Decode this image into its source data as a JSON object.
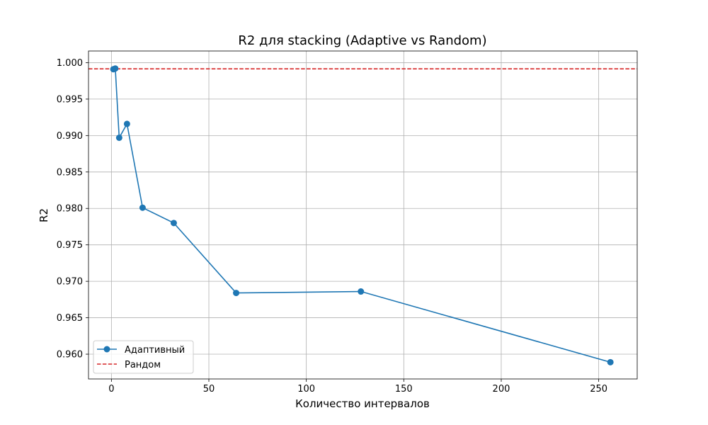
{
  "chart_data": {
    "type": "line",
    "title": "R2 для stacking (Adaptive vs Random)",
    "xlabel": "Количество интервалов",
    "ylabel": "R2",
    "xlim": [
      -11.75,
      269.75
    ],
    "ylim": [
      0.9566,
      1.0016
    ],
    "xticks": [
      0,
      50,
      100,
      150,
      200,
      250
    ],
    "yticks": [
      0.96,
      0.965,
      0.97,
      0.975,
      0.98,
      0.985,
      0.99,
      0.995,
      1.0
    ],
    "yticks_labels": [
      "0.960",
      "0.965",
      "0.970",
      "0.975",
      "0.980",
      "0.985",
      "0.990",
      "0.995",
      "1.000"
    ],
    "grid": true,
    "legend_position": "lower-left",
    "series": [
      {
        "name": "Адаптивный",
        "style": "solid-line-circle-markers",
        "color": "#1f77b4",
        "x": [
          1,
          2,
          4,
          8,
          16,
          32,
          64,
          128,
          256
        ],
        "y": [
          0.9991,
          0.9992,
          0.9897,
          0.9916,
          0.9801,
          0.978,
          0.9684,
          0.9686,
          0.9589
        ]
      },
      {
        "name": "Рандом",
        "style": "dashed-horizontal",
        "color": "#d62728",
        "y_const": 0.99915
      }
    ]
  }
}
